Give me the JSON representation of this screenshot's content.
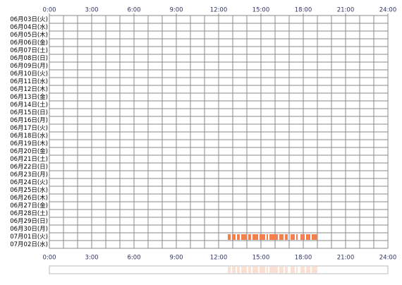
{
  "chart_data": {
    "type": "timeline",
    "categories": [
      "06月03日(火)",
      "06月04日(水)",
      "06月05日(木)",
      "06月06日(金)",
      "06月07日(土)",
      "06月08日(日)",
      "06月09日(月)",
      "06月10日(火)",
      "06月11日(水)",
      "06月12日(木)",
      "06月13日(金)",
      "06月14日(土)",
      "06月15日(日)",
      "06月16日(月)",
      "06月17日(火)",
      "06月18日(水)",
      "06月19日(木)",
      "06月20日(金)",
      "06月21日(土)",
      "06月22日(日)",
      "06月23日(月)",
      "06月24日(火)",
      "06月25日(水)",
      "06月26日(木)",
      "06月27日(金)",
      "06月28日(土)",
      "06月29日(日)",
      "06月30日(月)",
      "07月01日(火)",
      "07月02日(水)"
    ],
    "values": [
      [],
      [],
      [],
      [],
      [],
      [],
      [],
      [],
      [],
      [],
      [],
      [],
      [],
      [],
      [],
      [],
      [],
      [],
      [],
      [],
      [],
      [],
      [],
      [],
      [],
      [],
      [],
      [],
      [
        [
          12.65,
          12.85
        ],
        [
          12.95,
          13.2
        ],
        [
          13.3,
          13.5
        ],
        [
          13.6,
          14.0
        ],
        [
          14.1,
          14.3
        ],
        [
          14.4,
          14.8
        ],
        [
          14.9,
          15.3
        ],
        [
          15.4,
          15.5
        ],
        [
          15.6,
          16.2
        ],
        [
          16.3,
          16.6
        ],
        [
          16.7,
          16.9
        ],
        [
          17.1,
          17.4
        ],
        [
          17.5,
          17.6
        ],
        [
          17.8,
          18.1
        ],
        [
          18.2,
          18.5
        ],
        [
          18.6,
          19.0
        ]
      ],
      []
    ],
    "color": "#f4804f",
    "xlim": [
      0,
      24
    ],
    "xticks": [
      {
        "value": 0,
        "label": "0:00"
      },
      {
        "value": 3,
        "label": "3:00"
      },
      {
        "value": 6,
        "label": "6:00"
      },
      {
        "value": 9,
        "label": "9:00"
      },
      {
        "value": 12,
        "label": "12:00"
      },
      {
        "value": 15,
        "label": "15:00"
      },
      {
        "value": 18,
        "label": "18:00"
      },
      {
        "value": 21,
        "label": "21:00"
      },
      {
        "value": 24,
        "label": "24:00"
      }
    ],
    "grid_step": 1
  }
}
